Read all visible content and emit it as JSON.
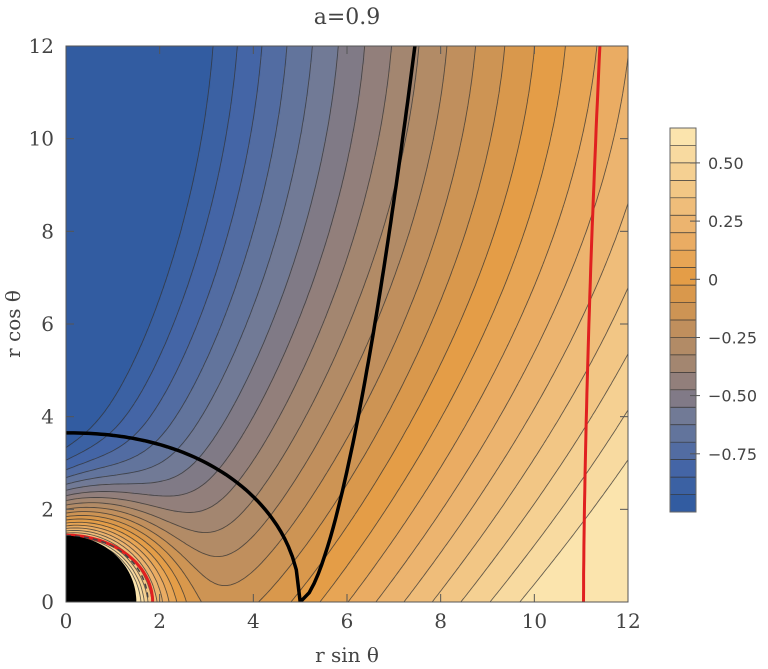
{
  "chart_data": {
    "type": "heatmap",
    "title": "a=0.9",
    "xlabel": "r sin θ",
    "ylabel": "r cos θ",
    "xlim": [
      0,
      12
    ],
    "ylim": [
      0,
      12
    ],
    "xticks": [
      "0",
      "2",
      "4",
      "6",
      "8",
      "10",
      "12"
    ],
    "yticks": [
      "0",
      "2",
      "4",
      "6",
      "8",
      "10",
      "12"
    ],
    "x_ticks_values": [
      0,
      2,
      4,
      6,
      8,
      10,
      12
    ],
    "y_ticks_values": [
      0,
      2,
      4,
      6,
      8,
      10,
      12
    ],
    "colorbar": {
      "range": [
        -1.0,
        0.65
      ],
      "tick_values": [
        0.5,
        0.25,
        0,
        -0.25,
        -0.5,
        -0.75
      ],
      "tick_labels": [
        "0.50",
        "0.25",
        "0",
        "−0.25",
        "−0.50",
        "−0.75"
      ],
      "colors": {
        "low": "#2b4f8c",
        "mid_low": "#7a7585",
        "mid": "#e39a44",
        "high": "#fdeab5"
      }
    },
    "contours": {
      "colormap_stops": [
        {
          "v": -1.0,
          "c": "#2e5aa0"
        },
        {
          "v": -0.8,
          "c": "#4566a6"
        },
        {
          "v": -0.6,
          "c": "#6f7a98"
        },
        {
          "v": -0.5,
          "c": "#837a84"
        },
        {
          "v": -0.35,
          "c": "#a6876e"
        },
        {
          "v": -0.2,
          "c": "#c2905b"
        },
        {
          "v": 0.0,
          "c": "#e49c45"
        },
        {
          "v": 0.2,
          "c": "#ebb06a"
        },
        {
          "v": 0.4,
          "c": "#f2c887"
        },
        {
          "v": 0.65,
          "c": "#fde9b4"
        }
      ],
      "black_curve": "separatrix",
      "red_curve": "zero-level",
      "dashed_curve": "ergosphere",
      "horizon_radius": 1.43
    },
    "colors": {
      "contour_line": "#333333",
      "separatrix": "#000000",
      "red_curve": "#e02020",
      "horizon": "#000000"
    }
  }
}
